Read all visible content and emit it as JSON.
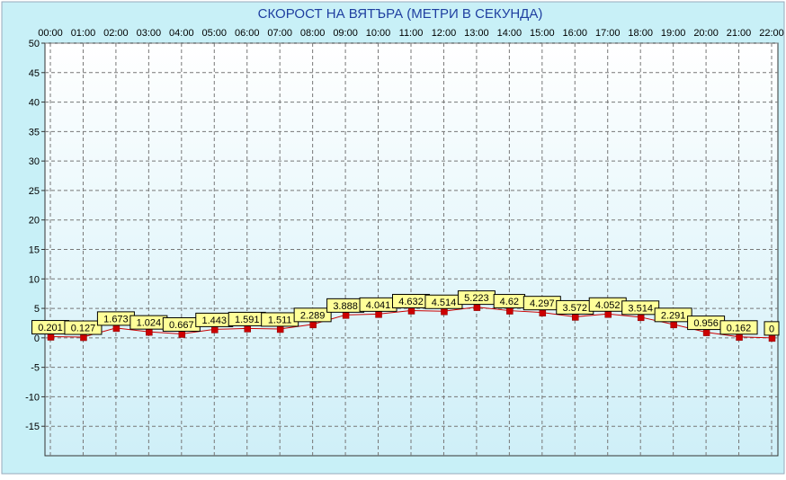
{
  "chart_data": {
    "type": "line",
    "title": "СКОРОСТ НА ВЯТЪРА (МЕТРИ В СЕКУНДА)",
    "xlabel": "",
    "ylabel": "",
    "categories": [
      "00:00",
      "01:00",
      "02:00",
      "03:00",
      "04:00",
      "05:00",
      "06:00",
      "07:00",
      "08:00",
      "09:00",
      "10:00",
      "11:00",
      "12:00",
      "13:00",
      "14:00",
      "15:00",
      "16:00",
      "17:00",
      "18:00",
      "19:00",
      "20:00",
      "21:00",
      "22:00"
    ],
    "y_ticks": [
      50,
      45,
      40,
      35,
      30,
      25,
      20,
      15,
      10,
      5,
      0,
      -5,
      -10,
      -15
    ],
    "ylim": [
      -20,
      50
    ],
    "grid": true,
    "x_axis_position": "top",
    "colors": {
      "title": "#1f3fa0",
      "line": "#cc0000",
      "marker": "#cc0000",
      "label_bg": "#ffff99",
      "plot_bg_top": "#ffffff",
      "plot_bg_bottom": "#cfeff8",
      "grid": "#777777",
      "frame_bg": "#c8f0f7"
    },
    "series": [
      {
        "values": [
          0.201,
          0.127,
          1.673,
          1.024,
          0.667,
          1.443,
          1.591,
          1.511,
          2.289,
          3.888,
          4.041,
          4.632,
          4.514,
          5.223,
          4.62,
          4.297,
          3.572,
          4.052,
          3.514,
          2.291,
          0.956,
          0.162,
          0
        ],
        "labels": [
          "0.201",
          "0.127",
          "1.673",
          "1.024",
          "0.667",
          "1.443",
          "1.591",
          "1.511",
          "2.289",
          "3.888",
          "4.041",
          "4.632",
          "4.514",
          "5.223",
          "4.62",
          "4.297",
          "3.572",
          "4.052",
          "3.514",
          "2.291",
          "0.956",
          "0.162",
          "0"
        ]
      }
    ]
  }
}
